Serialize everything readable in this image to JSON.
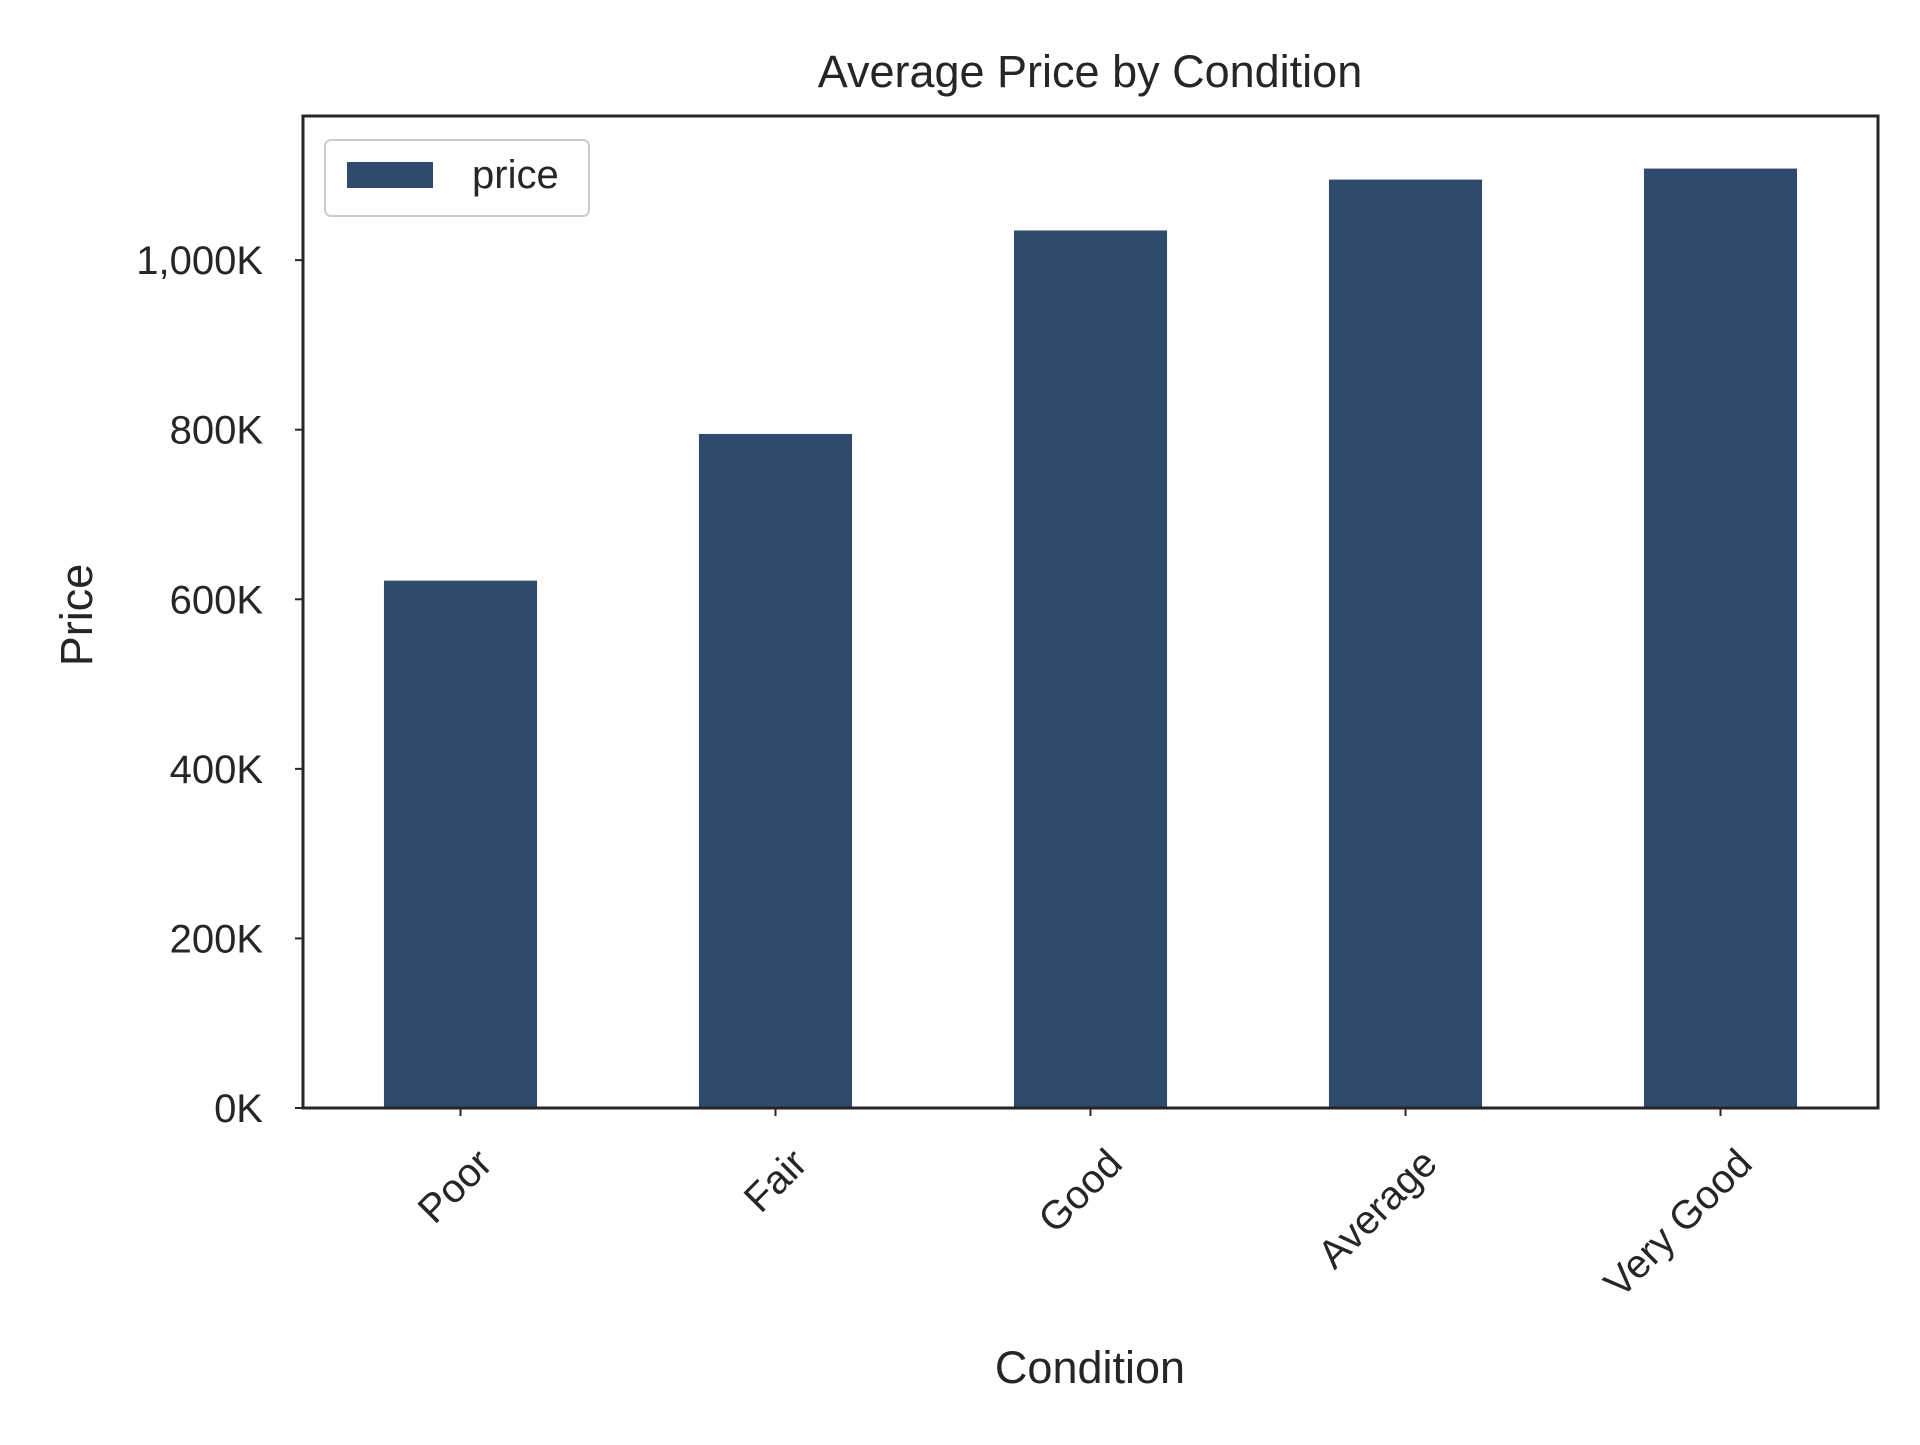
{
  "chart_data": {
    "type": "bar",
    "title": "Average Price by Condition",
    "xlabel": "Condition",
    "ylabel": "Price",
    "categories": [
      "Poor",
      "Fair",
      "Good",
      "Average",
      "Very Good"
    ],
    "series": [
      {
        "name": "price",
        "values": [
          622000,
          795000,
          1035000,
          1095000,
          1108000
        ],
        "color": "#2f4a6d"
      }
    ],
    "ylim": [
      0,
      1170000
    ],
    "yticks": [
      0,
      200000,
      400000,
      600000,
      800000,
      1000000
    ],
    "ytick_labels": [
      "0K",
      "200K",
      "400K",
      "600K",
      "800K",
      "1,000K"
    ],
    "grid": false,
    "legend": {
      "position": "top-left",
      "entries": [
        "price"
      ]
    },
    "x_tick_rotation_deg": 45
  }
}
